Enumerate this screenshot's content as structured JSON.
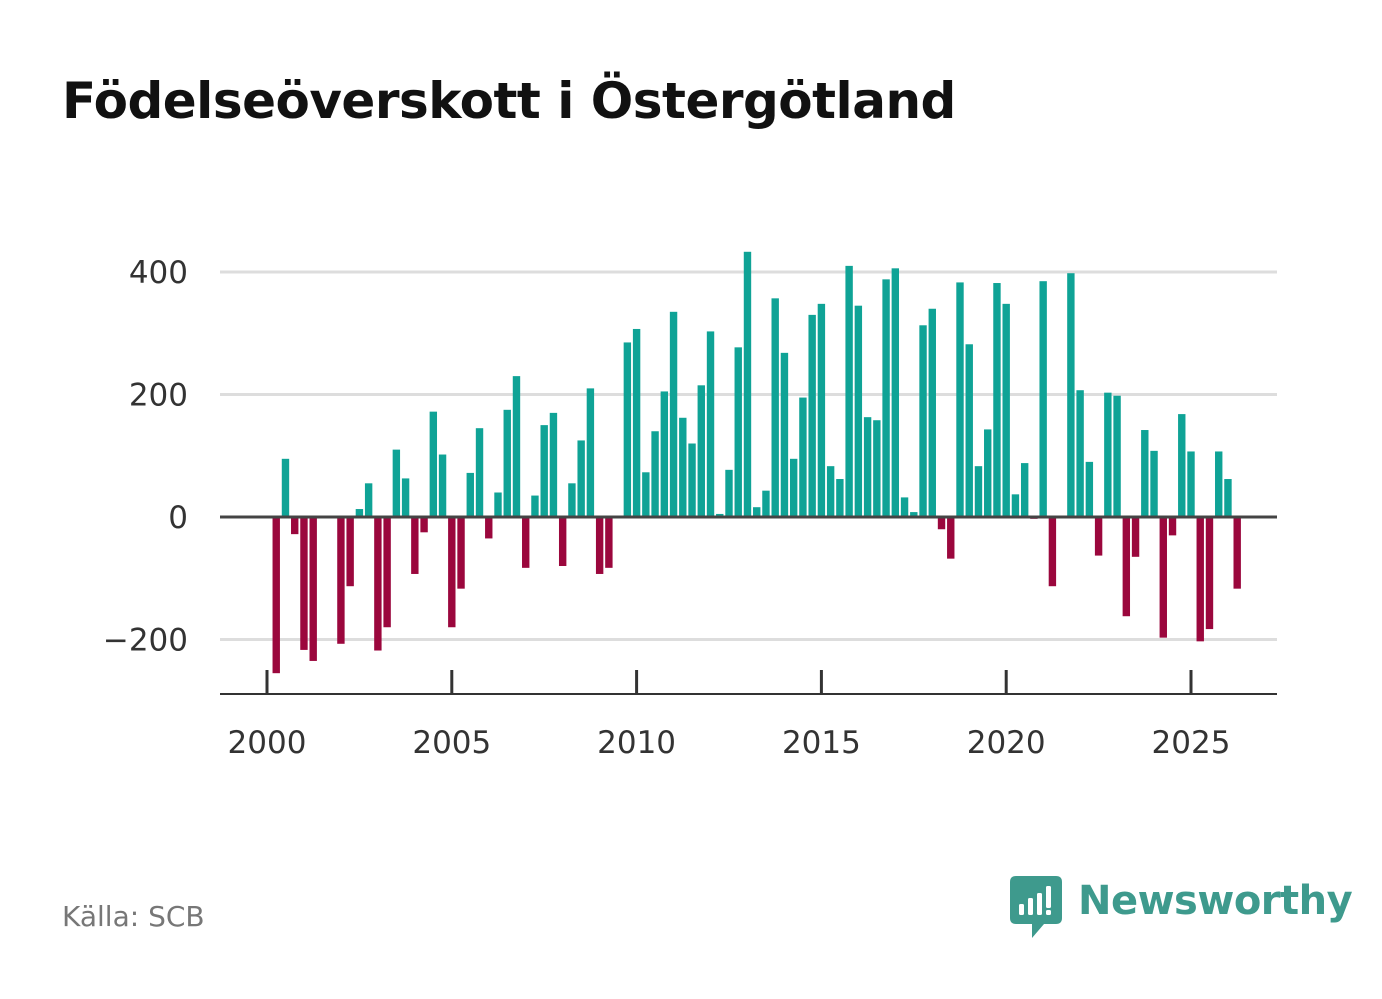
{
  "title": "Födelseöverskott i Östergötland",
  "source": "Källa: SCB",
  "brand": {
    "name": "Newsworthy",
    "icon": "newsworthy-logo-icon",
    "color": "#3e9a8d"
  },
  "colors": {
    "positive": "#0fa396",
    "negative": "#9b073d",
    "grid": "#dddddd",
    "zero": "#444444",
    "axis": "#333333"
  },
  "chart_data": {
    "type": "bar",
    "title": "Födelseöverskott i Östergötland",
    "xlabel": "",
    "ylabel": "",
    "ylim": [
      -300,
      450
    ],
    "xlim": [
      1999.25,
      2027.25
    ],
    "yticks": [
      -200,
      0,
      200,
      400
    ],
    "ytick_labels": [
      "−200",
      "0",
      "200",
      "400"
    ],
    "xticks": [
      2000,
      2005,
      2010,
      2015,
      2020,
      2025
    ],
    "xtick_labels": [
      "2000",
      "2005",
      "2010",
      "2015",
      "2020",
      "2025"
    ],
    "grid": true,
    "period": "quarterly",
    "series": [
      {
        "name": "Födelseöverskott",
        "points": [
          {
            "x": 2000.25,
            "value": -255
          },
          {
            "x": 2000.5,
            "value": 95
          },
          {
            "x": 2000.75,
            "value": -28
          },
          {
            "x": 2001.0,
            "value": -217
          },
          {
            "x": 2001.25,
            "value": -235
          },
          {
            "x": 2002.0,
            "value": -207
          },
          {
            "x": 2002.25,
            "value": -113
          },
          {
            "x": 2002.5,
            "value": 13
          },
          {
            "x": 2002.75,
            "value": 55
          },
          {
            "x": 2003.0,
            "value": -218
          },
          {
            "x": 2003.25,
            "value": -180
          },
          {
            "x": 2003.5,
            "value": 110
          },
          {
            "x": 2003.75,
            "value": 63
          },
          {
            "x": 2004.0,
            "value": -93
          },
          {
            "x": 2004.25,
            "value": -25
          },
          {
            "x": 2004.5,
            "value": 172
          },
          {
            "x": 2004.75,
            "value": 102
          },
          {
            "x": 2005.0,
            "value": -180
          },
          {
            "x": 2005.25,
            "value": -117
          },
          {
            "x": 2005.5,
            "value": 72
          },
          {
            "x": 2005.75,
            "value": 145
          },
          {
            "x": 2006.0,
            "value": -35
          },
          {
            "x": 2006.25,
            "value": 40
          },
          {
            "x": 2006.5,
            "value": 175
          },
          {
            "x": 2006.75,
            "value": 230
          },
          {
            "x": 2007.0,
            "value": -83
          },
          {
            "x": 2007.25,
            "value": 35
          },
          {
            "x": 2007.5,
            "value": 150
          },
          {
            "x": 2007.75,
            "value": 170
          },
          {
            "x": 2008.0,
            "value": -80
          },
          {
            "x": 2008.25,
            "value": 55
          },
          {
            "x": 2008.5,
            "value": 125
          },
          {
            "x": 2008.75,
            "value": 210
          },
          {
            "x": 2009.0,
            "value": -93
          },
          {
            "x": 2009.25,
            "value": -83
          },
          {
            "x": 2009.75,
            "value": 285
          },
          {
            "x": 2010.0,
            "value": 307
          },
          {
            "x": 2010.25,
            "value": 73
          },
          {
            "x": 2010.5,
            "value": 140
          },
          {
            "x": 2010.75,
            "value": 205
          },
          {
            "x": 2011.0,
            "value": 335
          },
          {
            "x": 2011.25,
            "value": 162
          },
          {
            "x": 2011.5,
            "value": 120
          },
          {
            "x": 2011.75,
            "value": 215
          },
          {
            "x": 2012.0,
            "value": 303
          },
          {
            "x": 2012.25,
            "value": 5
          },
          {
            "x": 2012.5,
            "value": 77
          },
          {
            "x": 2012.75,
            "value": 277
          },
          {
            "x": 2013.0,
            "value": 433
          },
          {
            "x": 2013.25,
            "value": 16
          },
          {
            "x": 2013.5,
            "value": 43
          },
          {
            "x": 2013.75,
            "value": 357
          },
          {
            "x": 2014.0,
            "value": 268
          },
          {
            "x": 2014.25,
            "value": 95
          },
          {
            "x": 2014.5,
            "value": 195
          },
          {
            "x": 2014.75,
            "value": 330
          },
          {
            "x": 2015.0,
            "value": 348
          },
          {
            "x": 2015.25,
            "value": 83
          },
          {
            "x": 2015.5,
            "value": 62
          },
          {
            "x": 2015.75,
            "value": 410
          },
          {
            "x": 2016.0,
            "value": 345
          },
          {
            "x": 2016.25,
            "value": 163
          },
          {
            "x": 2016.5,
            "value": 158
          },
          {
            "x": 2016.75,
            "value": 388
          },
          {
            "x": 2017.0,
            "value": 406
          },
          {
            "x": 2017.25,
            "value": 32
          },
          {
            "x": 2017.5,
            "value": 8
          },
          {
            "x": 2017.75,
            "value": 313
          },
          {
            "x": 2018.0,
            "value": 340
          },
          {
            "x": 2018.25,
            "value": -20
          },
          {
            "x": 2018.5,
            "value": -68
          },
          {
            "x": 2018.75,
            "value": 383
          },
          {
            "x": 2019.0,
            "value": 282
          },
          {
            "x": 2019.25,
            "value": 83
          },
          {
            "x": 2019.5,
            "value": 143
          },
          {
            "x": 2019.75,
            "value": 382
          },
          {
            "x": 2020.0,
            "value": 348
          },
          {
            "x": 2020.25,
            "value": 37
          },
          {
            "x": 2020.5,
            "value": 88
          },
          {
            "x": 2020.75,
            "value": -3
          },
          {
            "x": 2021.0,
            "value": 385
          },
          {
            "x": 2021.25,
            "value": -113
          },
          {
            "x": 2021.75,
            "value": 398
          },
          {
            "x": 2022.0,
            "value": 207
          },
          {
            "x": 2022.25,
            "value": 90
          },
          {
            "x": 2022.5,
            "value": -63
          },
          {
            "x": 2022.75,
            "value": 203
          },
          {
            "x": 2023.0,
            "value": 198
          },
          {
            "x": 2023.25,
            "value": -162
          },
          {
            "x": 2023.5,
            "value": -65
          },
          {
            "x": 2023.75,
            "value": 142
          },
          {
            "x": 2024.0,
            "value": 108
          },
          {
            "x": 2024.25,
            "value": -197
          },
          {
            "x": 2024.5,
            "value": -30
          },
          {
            "x": 2024.75,
            "value": 168
          },
          {
            "x": 2025.0,
            "value": 107
          },
          {
            "x": 2025.25,
            "value": -203
          },
          {
            "x": 2025.5,
            "value": -183
          },
          {
            "x": 2025.75,
            "value": 107
          },
          {
            "x": 2026.0,
            "value": 62
          },
          {
            "x": 2026.25,
            "value": -117
          }
        ]
      }
    ]
  }
}
